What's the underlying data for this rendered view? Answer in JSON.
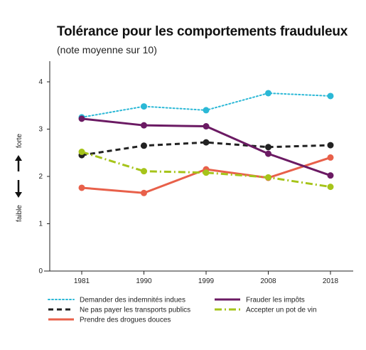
{
  "chart_data": {
    "type": "line",
    "title": "Tolérance pour les comportements frauduleux",
    "subtitle": "(note moyenne sur 10)",
    "x": [
      "1981",
      "1990",
      "1999",
      "2008",
      "2018"
    ],
    "y_ticks": [
      "0",
      "1",
      "2",
      "3",
      "4"
    ],
    "ylim": [
      0,
      4.4
    ],
    "y_side_labels": {
      "high": "forte",
      "low": "faible"
    },
    "grid": false,
    "legend_position": "bottom",
    "series": [
      {
        "name": "Demander des indemnités indues",
        "color": "#2bb8d6",
        "dash": "dotted",
        "values": [
          3.25,
          3.48,
          3.4,
          3.76,
          3.7
        ]
      },
      {
        "name": "Ne pas payer les transports publics",
        "color": "#222222",
        "dash": "dashed",
        "values": [
          2.45,
          2.65,
          2.72,
          2.62,
          2.66
        ]
      },
      {
        "name": "Prendre des drogues douces",
        "color": "#e8604a",
        "dash": "solid",
        "values": [
          1.76,
          1.65,
          2.15,
          1.97,
          2.4
        ]
      },
      {
        "name": "Frauder les impôts",
        "color": "#6b1a63",
        "dash": "solid",
        "values": [
          3.22,
          3.08,
          3.06,
          2.48,
          2.02
        ]
      },
      {
        "name": "Accepter un pot de vin",
        "color": "#a6c41a",
        "dash": "dashdot",
        "values": [
          2.52,
          2.11,
          2.08,
          1.98,
          1.78
        ]
      }
    ]
  }
}
